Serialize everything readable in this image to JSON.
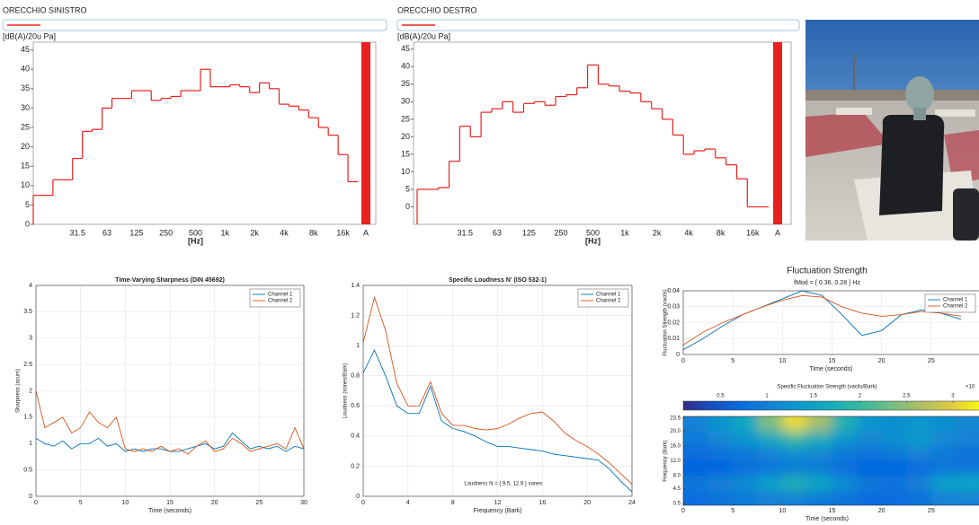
{
  "chart_data": [
    {
      "type": "step",
      "title": "ORECCHIO SINISTRO",
      "y_label": "[dB(A)/20u Pa]",
      "x_label": "[Hz]",
      "categories": [
        null,
        null,
        null,
        null,
        "31.5",
        null,
        null,
        "63",
        null,
        null,
        "125",
        null,
        null,
        "250",
        null,
        null,
        "500",
        null,
        null,
        "1k",
        null,
        null,
        "2k",
        null,
        null,
        "4k",
        null,
        null,
        "8k",
        null,
        null,
        "16k",
        null
      ],
      "values": [
        7.5,
        7.5,
        11.5,
        11.5,
        17,
        24,
        24.5,
        30,
        32.5,
        32.5,
        34.5,
        34.5,
        32,
        32.5,
        33,
        34.5,
        34.5,
        40,
        35.5,
        35.5,
        36,
        35.5,
        34,
        36.5,
        35,
        31,
        30.5,
        29.5,
        27.5,
        25,
        23,
        18,
        11
      ],
      "color": "#e8201f",
      "ylim": [
        0,
        47
      ],
      "yticks": [
        0,
        5,
        10,
        15,
        20,
        25,
        30,
        35,
        40,
        45
      ],
      "total_label": "A",
      "total_value": 47
    },
    {
      "type": "step",
      "title": "ORECCHIO DESTRO",
      "y_label": "[dB(A)/20u Pa]",
      "x_label": "[Hz]",
      "categories": [
        null,
        null,
        null,
        null,
        "31.5",
        null,
        null,
        "63",
        null,
        null,
        "125",
        null,
        null,
        "250",
        null,
        null,
        "500",
        null,
        null,
        "1k",
        null,
        null,
        "2k",
        null,
        null,
        "4k",
        null,
        null,
        "8k",
        null,
        null,
        "16k",
        null
      ],
      "values": [
        5,
        5,
        5.5,
        13,
        23,
        20,
        27,
        28,
        30,
        27,
        29.5,
        30,
        29,
        31.5,
        32,
        34,
        40.5,
        35,
        34.5,
        33,
        32.5,
        30,
        28,
        25,
        20.5,
        15,
        16,
        16.5,
        14,
        12,
        8,
        0,
        0
      ],
      "color": "#e8201f",
      "ylim": [
        -5,
        47
      ],
      "yticks": [
        0,
        5,
        10,
        15,
        20,
        25,
        30,
        35,
        40,
        45
      ],
      "total_label": "A",
      "total_value": 47
    },
    {
      "type": "line",
      "title": "Time-Varying Sharpness (DIN 45692)",
      "x_label": "Time (seconds)",
      "y_label": "Sharpness (acum)",
      "x": [
        0,
        1,
        2,
        3,
        4,
        5,
        6,
        7,
        8,
        9,
        10,
        11,
        12,
        13,
        14,
        15,
        16,
        17,
        18,
        19,
        20,
        21,
        22,
        23,
        24,
        25,
        26,
        27,
        28,
        29,
        30
      ],
      "series": [
        {
          "name": "Channel 1",
          "color": "#0072bd",
          "values": [
            1.1,
            1.0,
            0.95,
            1.05,
            0.9,
            1.0,
            1.0,
            1.1,
            0.95,
            1.0,
            0.85,
            0.9,
            0.85,
            0.9,
            0.9,
            0.85,
            0.85,
            0.9,
            0.95,
            1.0,
            0.9,
            0.95,
            1.2,
            1.05,
            0.9,
            0.95,
            0.9,
            0.95,
            0.85,
            0.95,
            0.9
          ]
        },
        {
          "name": "Channel 2",
          "color": "#d95319",
          "values": [
            2.0,
            1.3,
            1.4,
            1.5,
            1.2,
            1.3,
            1.6,
            1.4,
            1.3,
            1.5,
            0.9,
            0.85,
            0.9,
            0.85,
            0.95,
            0.85,
            0.9,
            0.8,
            0.95,
            1.05,
            0.85,
            0.9,
            1.1,
            1.0,
            0.85,
            0.9,
            0.95,
            1.0,
            0.9,
            1.3,
            0.9
          ]
        }
      ],
      "xlim": [
        0,
        30
      ],
      "xticks": [
        0,
        5,
        10,
        15,
        20,
        25,
        30
      ],
      "ylim": [
        0,
        4
      ],
      "yticks": [
        0,
        0.5,
        1,
        1.5,
        2,
        2.5,
        3,
        3.5,
        4
      ],
      "grid": true,
      "legend": "upper right"
    },
    {
      "type": "line",
      "title": "Specific Loudness N' (ISO 532-1)",
      "x_label": "Frequency (Bark)",
      "y_label": "Loudness (sones/Bark)",
      "annotation": "Loudness N = { 9.5, 12.9 } sones",
      "x": [
        0,
        1,
        2,
        3,
        4,
        5,
        6,
        7,
        8,
        9,
        10,
        11,
        12,
        13,
        14,
        15,
        16,
        17,
        18,
        19,
        20,
        21,
        22,
        23,
        24
      ],
      "series": [
        {
          "name": "Channel 1",
          "color": "#0072bd",
          "values": [
            0.82,
            0.97,
            0.8,
            0.6,
            0.55,
            0.55,
            0.73,
            0.5,
            0.45,
            0.43,
            0.4,
            0.36,
            0.33,
            0.33,
            0.32,
            0.31,
            0.3,
            0.28,
            0.27,
            0.26,
            0.25,
            0.24,
            0.18,
            0.1,
            0.03
          ]
        },
        {
          "name": "Channel 2",
          "color": "#d95319",
          "values": [
            1.02,
            1.32,
            1.1,
            0.75,
            0.6,
            0.6,
            0.76,
            0.55,
            0.47,
            0.47,
            0.45,
            0.44,
            0.45,
            0.48,
            0.52,
            0.55,
            0.56,
            0.5,
            0.42,
            0.37,
            0.33,
            0.28,
            0.22,
            0.15,
            0.08
          ]
        }
      ],
      "xlim": [
        0,
        24
      ],
      "xticks": [
        0,
        4,
        8,
        12,
        16,
        20,
        24
      ],
      "ylim": [
        0,
        1.4
      ],
      "yticks": [
        0,
        0.2,
        0.4,
        0.6,
        0.8,
        1,
        1.2,
        1.4
      ],
      "grid": true,
      "legend": "upper right"
    },
    {
      "type": "line",
      "title": "Fluctuation Strength",
      "subtitle": "fMod = { 0.36, 0.28 } Hz",
      "x_label": "Time (seconds)",
      "y_label": "Fluctuation Strength (vacils)",
      "x": [
        0,
        2,
        4,
        6,
        8,
        10,
        12,
        14,
        16,
        18,
        20,
        22,
        24,
        26,
        28
      ],
      "series": [
        {
          "name": "Channel 1",
          "color": "#0072bd",
          "values": [
            0.003,
            0.01,
            0.018,
            0.025,
            0.03,
            0.035,
            0.04,
            0.037,
            0.025,
            0.012,
            0.015,
            0.025,
            0.028,
            0.026,
            0.022
          ]
        },
        {
          "name": "Channel 2",
          "color": "#d95319",
          "values": [
            0.006,
            0.014,
            0.02,
            0.025,
            0.03,
            0.034,
            0.037,
            0.036,
            0.03,
            0.026,
            0.024,
            0.025,
            0.027,
            0.026,
            0.024
          ]
        }
      ],
      "xlim": [
        0,
        30
      ],
      "xticks": [
        0,
        5,
        10,
        15,
        20,
        25
      ],
      "ylim": [
        0,
        0.04
      ],
      "yticks": [
        0,
        0.01,
        0.02,
        0.03,
        0.04
      ],
      "grid": true,
      "legend": "upper right"
    },
    {
      "type": "heatmap",
      "title": "Specific Fluctuation Strength (vacils/Bark)",
      "colorbar_label": "×10",
      "x_label": "Time (seconds)",
      "y_label": "Frequency (Bark)",
      "x": [
        1.25,
        3.75,
        6.25,
        8.75,
        11.25,
        13.75,
        16.25,
        18.75,
        21.25,
        23.75,
        26.25,
        28.75
      ],
      "y": [
        2,
        6,
        10,
        14,
        18,
        22
      ],
      "z": [
        [
          0.7,
          0.8,
          0.9,
          1.0,
          1.0,
          0.9,
          0.8,
          0.7,
          0.7,
          0.8,
          1.0,
          1.0
        ],
        [
          0.9,
          1.0,
          1.2,
          1.5,
          1.8,
          1.6,
          1.2,
          0.9,
          0.8,
          1.0,
          1.5,
          1.6
        ],
        [
          0.6,
          0.6,
          0.7,
          0.8,
          0.9,
          0.9,
          0.7,
          0.6,
          0.6,
          0.7,
          0.8,
          0.8
        ],
        [
          0.7,
          0.8,
          0.9,
          1.0,
          1.2,
          1.1,
          0.9,
          0.8,
          0.9,
          1.0,
          0.9,
          0.8
        ],
        [
          0.9,
          1.1,
          1.3,
          1.6,
          2.0,
          1.7,
          1.3,
          1.1,
          1.2,
          1.4,
          1.1,
          1.0
        ],
        [
          1.0,
          1.3,
          1.6,
          2.4,
          3.1,
          2.6,
          1.8,
          1.3,
          1.2,
          1.3,
          1.2,
          1.1
        ]
      ],
      "xlim": [
        0,
        30
      ],
      "xticks": [
        0,
        5,
        10,
        15,
        20,
        25
      ],
      "ylim": [
        0,
        24
      ],
      "yticks": [
        0.5,
        4.5,
        {
          "value": 8,
          "label": "8.0"
        },
        {
          "value": 12,
          "label": "12.0"
        },
        {
          "value": 16,
          "label": "16.0"
        },
        {
          "value": 20,
          "label": "20.0"
        },
        23.5
      ],
      "clim": [
        0.1,
        3.3
      ],
      "cticks": [
        0.5,
        1,
        1.5,
        2,
        2.5,
        3
      ]
    }
  ]
}
